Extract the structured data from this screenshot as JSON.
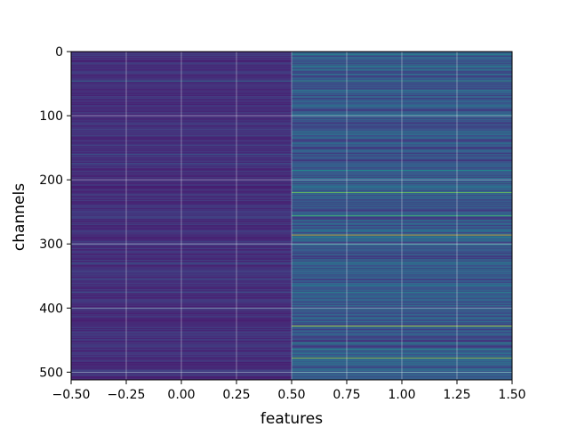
{
  "chart_data": {
    "type": "heatmap",
    "title": "",
    "xlabel": "features",
    "ylabel": "channels",
    "xlim": [
      -0.5,
      1.5
    ],
    "ylim": [
      512,
      0
    ],
    "grid": true,
    "colormap": "viridis",
    "color_range": [
      0,
      1
    ],
    "x_ticks": [
      -0.5,
      -0.25,
      0.0,
      0.25,
      0.5,
      0.75,
      1.0,
      1.25,
      1.5
    ],
    "x_tick_labels": [
      "−0.50",
      "−0.25",
      "0.00",
      "0.25",
      "0.50",
      "0.75",
      "1.00",
      "1.25",
      "1.50"
    ],
    "y_ticks": [
      0,
      100,
      200,
      300,
      400,
      500
    ],
    "y_tick_labels": [
      "0",
      "100",
      "200",
      "300",
      "400",
      "500"
    ],
    "columns": [
      {
        "feature": 0,
        "base_level": 0.16,
        "highlights": [
          {
            "channel": 46,
            "value": 0.4
          },
          {
            "channel": 160,
            "value": 0.3
          },
          {
            "channel": 175,
            "value": 0.28
          },
          {
            "channel": 330,
            "value": 0.32
          },
          {
            "channel": 375,
            "value": 0.28
          },
          {
            "channel": 400,
            "value": 0.32
          },
          {
            "channel": 500,
            "value": 0.3
          }
        ]
      },
      {
        "feature": 1,
        "base_level": 0.28,
        "highlights": [
          {
            "channel": 5,
            "value": 0.5
          },
          {
            "channel": 22,
            "value": 0.45
          },
          {
            "channel": 28,
            "value": 0.5
          },
          {
            "channel": 46,
            "value": 0.55
          },
          {
            "channel": 60,
            "value": 0.45
          },
          {
            "channel": 100,
            "value": 0.5
          },
          {
            "channel": 126,
            "value": 0.45
          },
          {
            "channel": 185,
            "value": 0.5
          },
          {
            "channel": 205,
            "value": 0.5
          },
          {
            "channel": 220,
            "value": 0.8
          },
          {
            "channel": 256,
            "value": 0.7
          },
          {
            "channel": 286,
            "value": 0.95
          },
          {
            "channel": 290,
            "value": 0.5
          },
          {
            "channel": 300,
            "value": 0.45
          },
          {
            "channel": 330,
            "value": 0.5
          },
          {
            "channel": 375,
            "value": 0.45
          },
          {
            "channel": 428,
            "value": 0.92
          },
          {
            "channel": 455,
            "value": 0.5
          },
          {
            "channel": 465,
            "value": 0.45
          },
          {
            "channel": 478,
            "value": 0.85
          },
          {
            "channel": 500,
            "value": 0.5
          }
        ]
      }
    ]
  }
}
